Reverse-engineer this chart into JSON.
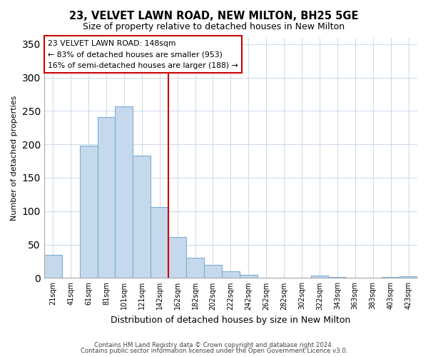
{
  "title": "23, VELVET LAWN ROAD, NEW MILTON, BH25 5GE",
  "subtitle": "Size of property relative to detached houses in New Milton",
  "xlabel": "Distribution of detached houses by size in New Milton",
  "ylabel": "Number of detached properties",
  "bar_labels": [
    "21sqm",
    "41sqm",
    "61sqm",
    "81sqm",
    "101sqm",
    "121sqm",
    "142sqm",
    "162sqm",
    "182sqm",
    "202sqm",
    "222sqm",
    "242sqm",
    "262sqm",
    "282sqm",
    "302sqm",
    "322sqm",
    "343sqm",
    "363sqm",
    "383sqm",
    "403sqm",
    "423sqm"
  ],
  "bar_values": [
    35,
    0,
    198,
    241,
    257,
    183,
    106,
    61,
    30,
    20,
    10,
    5,
    0,
    0,
    0,
    3,
    1,
    0,
    0,
    1,
    2
  ],
  "bar_color": "#c6d9ec",
  "bar_edge_color": "#7aadd4",
  "vline_x_index": 6,
  "vline_color": "#cc0000",
  "ylim": [
    0,
    360
  ],
  "yticks": [
    0,
    50,
    100,
    150,
    200,
    250,
    300,
    350
  ],
  "annotation_title": "23 VELVET LAWN ROAD: 148sqm",
  "annotation_line1": "← 83% of detached houses are smaller (953)",
  "annotation_line2": "16% of semi-detached houses are larger (188) →",
  "footer_line1": "Contains HM Land Registry data © Crown copyright and database right 2024.",
  "footer_line2": "Contains public sector information licensed under the Open Government Licence v3.0.",
  "bg_color": "#ffffff",
  "grid_color": "#c8d8e8"
}
